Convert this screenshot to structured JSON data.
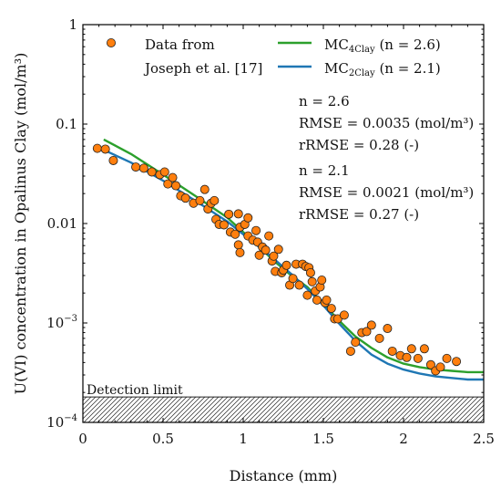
{
  "chart_data": {
    "type": "scatter",
    "title": "",
    "xlabel": "Distance (mm)",
    "ylabel": "U(VI) concentration in Opalinus Clay (mol/m³)",
    "xlim": [
      0,
      2.5
    ],
    "ylim": [
      0.0001,
      1
    ],
    "yscale": "log",
    "grid": false,
    "x_ticks": [
      "0",
      "0.5",
      "1",
      "1.5",
      "2",
      "2.5"
    ],
    "y_ticks": [
      {
        "value": 0.0001,
        "base": "10",
        "exp": "−4"
      },
      {
        "value": 0.001,
        "base": "10",
        "exp": "−3"
      },
      {
        "value": 0.01,
        "base": "0.01",
        "exp": ""
      },
      {
        "value": 0.1,
        "base": "0.1",
        "exp": ""
      },
      {
        "value": 1,
        "base": "1",
        "exp": ""
      }
    ],
    "detection_limit": {
      "label": "Detection limit",
      "value": 0.00018
    },
    "legend": {
      "placement": "top",
      "scatter": {
        "line1": "Data from",
        "line2": "Joseph et al. [17]",
        "color": "#ff7f0e"
      },
      "lines": [
        {
          "pre": "MC",
          "sub": "4Clay",
          "post": " (n = 2.6)",
          "color": "#2ca02c"
        },
        {
          "pre": "MC",
          "sub": "2Clay",
          "post": " (n = 2.1)",
          "color": "#1f77b4"
        }
      ]
    },
    "annotations": [
      {
        "lines": [
          "n = 2.6",
          "RMSE = 0.0035 (mol/m³)",
          "rRMSE = 0.28 (-)"
        ]
      },
      {
        "lines": [
          "n = 2.1",
          "RMSE = 0.0021 (mol/m³)",
          "rRMSE = 0.27  (-)"
        ]
      }
    ],
    "series": [
      {
        "name": "Data from Joseph et al. [17]",
        "kind": "scatter",
        "color": "#ff7f0e",
        "points": [
          [
            0.09,
            0.057
          ],
          [
            0.14,
            0.056
          ],
          [
            0.19,
            0.043
          ],
          [
            0.33,
            0.037
          ],
          [
            0.38,
            0.036
          ],
          [
            0.43,
            0.033
          ],
          [
            0.48,
            0.031
          ],
          [
            0.51,
            0.033
          ],
          [
            0.53,
            0.025
          ],
          [
            0.56,
            0.029
          ],
          [
            0.58,
            0.024
          ],
          [
            0.61,
            0.019
          ],
          [
            0.64,
            0.018
          ],
          [
            0.69,
            0.016
          ],
          [
            0.73,
            0.017
          ],
          [
            0.76,
            0.022
          ],
          [
            0.78,
            0.014
          ],
          [
            0.8,
            0.016
          ],
          [
            0.82,
            0.017
          ],
          [
            0.83,
            0.011
          ],
          [
            0.85,
            0.0098
          ],
          [
            0.88,
            0.0097
          ],
          [
            0.91,
            0.0124
          ],
          [
            0.92,
            0.0082
          ],
          [
            0.95,
            0.0078
          ],
          [
            0.97,
            0.0125
          ],
          [
            0.97,
            0.0061
          ],
          [
            0.98,
            0.0092
          ],
          [
            0.98,
            0.0051
          ],
          [
            1.01,
            0.0098
          ],
          [
            1.03,
            0.0075
          ],
          [
            1.03,
            0.0114
          ],
          [
            1.06,
            0.0068
          ],
          [
            1.08,
            0.0085
          ],
          [
            1.09,
            0.0065
          ],
          [
            1.1,
            0.0048
          ],
          [
            1.12,
            0.0058
          ],
          [
            1.14,
            0.0054
          ],
          [
            1.16,
            0.0075
          ],
          [
            1.18,
            0.0042
          ],
          [
            1.19,
            0.0047
          ],
          [
            1.2,
            0.0033
          ],
          [
            1.22,
            0.0055
          ],
          [
            1.24,
            0.0032
          ],
          [
            1.25,
            0.0034
          ],
          [
            1.27,
            0.0038
          ],
          [
            1.29,
            0.0024
          ],
          [
            1.31,
            0.0028
          ],
          [
            1.33,
            0.0039
          ],
          [
            1.35,
            0.0024
          ],
          [
            1.37,
            0.0039
          ],
          [
            1.39,
            0.0037
          ],
          [
            1.4,
            0.0019
          ],
          [
            1.41,
            0.0036
          ],
          [
            1.42,
            0.0032
          ],
          [
            1.43,
            0.0026
          ],
          [
            1.45,
            0.0021
          ],
          [
            1.46,
            0.0017
          ],
          [
            1.48,
            0.0023
          ],
          [
            1.49,
            0.0027
          ],
          [
            1.51,
            0.0016
          ],
          [
            1.52,
            0.0017
          ],
          [
            1.55,
            0.0014
          ],
          [
            1.57,
            0.0011
          ],
          [
            1.59,
            0.0011
          ],
          [
            1.63,
            0.0012
          ],
          [
            1.67,
            0.00052
          ],
          [
            1.7,
            0.00064
          ],
          [
            1.74,
            0.0008
          ],
          [
            1.77,
            0.00082
          ],
          [
            1.8,
            0.00095
          ],
          [
            1.85,
            0.0007
          ],
          [
            1.9,
            0.00088
          ],
          [
            1.93,
            0.00052
          ],
          [
            1.98,
            0.00047
          ],
          [
            2.02,
            0.00045
          ],
          [
            2.05,
            0.00055
          ],
          [
            2.09,
            0.00044
          ],
          [
            2.13,
            0.00055
          ],
          [
            2.17,
            0.00038
          ],
          [
            2.2,
            0.00033
          ],
          [
            2.23,
            0.00036
          ],
          [
            2.27,
            0.00044
          ],
          [
            2.33,
            0.00041
          ]
        ]
      },
      {
        "name": "MC4Clay (n = 2.6)",
        "kind": "line",
        "color": "#2ca02c",
        "x": [
          0.13,
          0.3,
          0.5,
          0.7,
          0.9,
          1.0,
          1.1,
          1.2,
          1.3,
          1.4,
          1.5,
          1.6,
          1.7,
          1.8,
          1.9,
          2.0,
          2.1,
          2.2,
          2.3,
          2.4,
          2.5
        ],
        "y": [
          0.07,
          0.05,
          0.031,
          0.019,
          0.0115,
          0.0082,
          0.0058,
          0.0041,
          0.003,
          0.0023,
          0.00155,
          0.00105,
          0.00073,
          0.00056,
          0.00045,
          0.00039,
          0.00036,
          0.00034,
          0.00033,
          0.00032,
          0.00032
        ]
      },
      {
        "name": "MC2Clay (n = 2.1)",
        "kind": "line",
        "color": "#1f77b4",
        "x": [
          0.13,
          0.3,
          0.5,
          0.7,
          0.9,
          1.0,
          1.1,
          1.2,
          1.3,
          1.4,
          1.5,
          1.6,
          1.7,
          1.8,
          1.9,
          2.0,
          2.1,
          2.2,
          2.3,
          2.4,
          2.5
        ],
        "y": [
          0.055,
          0.041,
          0.027,
          0.017,
          0.0105,
          0.0078,
          0.0058,
          0.0043,
          0.0031,
          0.0022,
          0.0015,
          0.00098,
          0.00066,
          0.00048,
          0.00039,
          0.00034,
          0.00031,
          0.00029,
          0.00028,
          0.00027,
          0.00027
        ]
      }
    ]
  }
}
